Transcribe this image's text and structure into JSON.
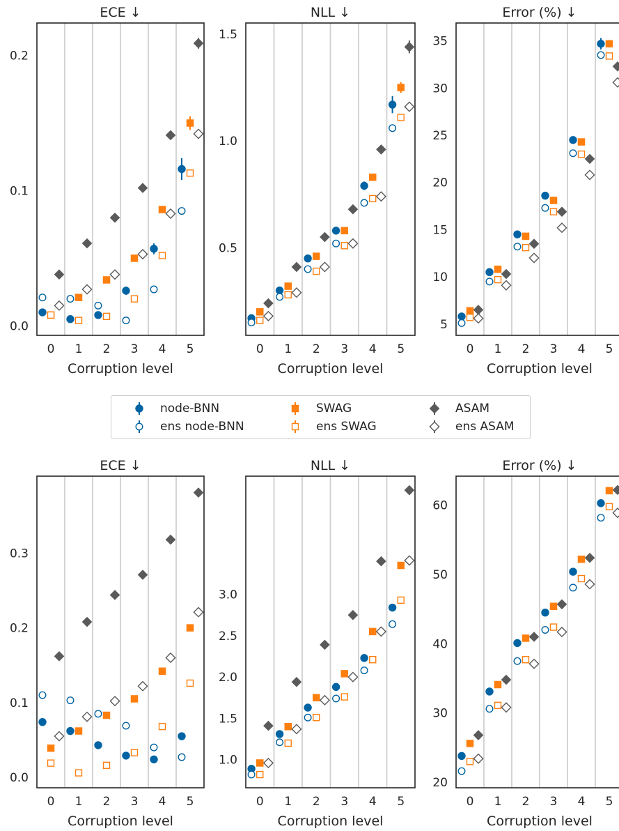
{
  "colors": {
    "node-BNN": "#0063a3",
    "SWAG": "#ff7f0e",
    "ASAM": "#5a5a5a"
  },
  "legend": [
    {
      "label": "node-BNN",
      "color": "#0063a3",
      "marker": "circle",
      "filled": true
    },
    {
      "label": "ens node-BNN",
      "color": "#0063a3",
      "marker": "circle",
      "filled": false
    },
    {
      "label": "SWAG",
      "color": "#ff7f0e",
      "marker": "square",
      "filled": true
    },
    {
      "label": "ens SWAG",
      "color": "#ff7f0e",
      "marker": "square",
      "filled": false
    },
    {
      "label": "ASAM",
      "color": "#5a5a5a",
      "marker": "diamond",
      "filled": true
    },
    {
      "label": "ens ASAM",
      "color": "#5a5a5a",
      "marker": "diamond",
      "filled": false
    }
  ],
  "chart_data": [
    {
      "type": "scatter",
      "title": "ECE  ↓",
      "xlabel": "Corruption level",
      "categories": [
        "0",
        "1",
        "2",
        "3",
        "4",
        "5"
      ],
      "ylim": [
        -0.007,
        0.224
      ],
      "yticks": [
        0.0,
        0.1,
        0.2
      ],
      "ytick_labels": [
        "0.0",
        "0.1",
        "0.2"
      ],
      "series": [
        {
          "name": "node-BNN",
          "values": [
            0.01,
            0.005,
            0.008,
            0.026,
            0.057,
            0.116
          ],
          "err": [
            0.001,
            0.001,
            0.001,
            0.003,
            0.004,
            0.008
          ]
        },
        {
          "name": "ens node-BNN",
          "values": [
            0.021,
            0.02,
            0.015,
            0.004,
            0.027,
            0.085
          ],
          "err": [
            0,
            0,
            0,
            0,
            0,
            0
          ]
        },
        {
          "name": "SWAG",
          "values": [
            0.008,
            0.021,
            0.034,
            0.05,
            0.086,
            0.15
          ],
          "err": [
            0.001,
            0.001,
            0.001,
            0.002,
            0.002,
            0.005
          ]
        },
        {
          "name": "ens SWAG",
          "values": [
            0.008,
            0.004,
            0.007,
            0.02,
            0.052,
            0.113
          ],
          "err": [
            0,
            0,
            0,
            0,
            0,
            0
          ]
        },
        {
          "name": "ASAM",
          "values": [
            0.038,
            0.061,
            0.08,
            0.102,
            0.141,
            0.209
          ],
          "err": [
            0.001,
            0.001,
            0.001,
            0.001,
            0.001,
            0.004
          ]
        },
        {
          "name": "ens ASAM",
          "values": [
            0.015,
            0.027,
            0.038,
            0.053,
            0.083,
            0.142
          ],
          "err": [
            0,
            0,
            0,
            0,
            0,
            0
          ]
        }
      ]
    },
    {
      "type": "scatter",
      "title": "NLL  ↓",
      "xlabel": "Corruption level",
      "categories": [
        "0",
        "1",
        "2",
        "3",
        "4",
        "5"
      ],
      "ylim": [
        0.09,
        1.552
      ],
      "yticks": [
        0.5,
        1.0,
        1.5
      ],
      "ytick_labels": [
        "0.5",
        "1.0",
        "1.5"
      ],
      "series": [
        {
          "name": "node-BNN",
          "values": [
            0.17,
            0.3,
            0.45,
            0.58,
            0.79,
            1.17
          ],
          "err": [
            0.005,
            0.008,
            0.01,
            0.015,
            0.02,
            0.04
          ]
        },
        {
          "name": "ens node-BNN",
          "values": [
            0.15,
            0.27,
            0.4,
            0.52,
            0.71,
            1.06
          ],
          "err": [
            0,
            0,
            0,
            0,
            0,
            0
          ]
        },
        {
          "name": "SWAG",
          "values": [
            0.2,
            0.32,
            0.46,
            0.58,
            0.83,
            1.25
          ],
          "err": [
            0.005,
            0.005,
            0.01,
            0.01,
            0.01,
            0.025
          ]
        },
        {
          "name": "ens SWAG",
          "values": [
            0.16,
            0.28,
            0.39,
            0.51,
            0.73,
            1.11
          ],
          "err": [
            0,
            0,
            0,
            0,
            0,
            0
          ]
        },
        {
          "name": "ASAM",
          "values": [
            0.24,
            0.41,
            0.55,
            0.68,
            0.96,
            1.44
          ],
          "err": [
            0.005,
            0.005,
            0.005,
            0.005,
            0.01,
            0.03
          ]
        },
        {
          "name": "ens ASAM",
          "values": [
            0.18,
            0.29,
            0.41,
            0.52,
            0.74,
            1.16
          ],
          "err": [
            0,
            0,
            0,
            0,
            0,
            0
          ]
        }
      ]
    },
    {
      "type": "scatter",
      "title": "Error (%)  ↓",
      "xlabel": "Corruption level",
      "categories": [
        "0",
        "1",
        "2",
        "3",
        "4",
        "5"
      ],
      "ylim": [
        3.8,
        36.9
      ],
      "yticks": [
        5,
        10,
        15,
        20,
        25,
        30,
        35
      ],
      "ytick_labels": [
        "5",
        "10",
        "15",
        "20",
        "25",
        "30",
        "35"
      ],
      "series": [
        {
          "name": "node-BNN",
          "values": [
            5.8,
            10.5,
            14.5,
            18.6,
            24.5,
            34.7
          ],
          "err": [
            0.2,
            0.2,
            0.2,
            0.3,
            0.3,
            0.6
          ]
        },
        {
          "name": "ens node-BNN",
          "values": [
            5.1,
            9.5,
            13.2,
            17.3,
            23.1,
            33.5
          ],
          "err": [
            0,
            0,
            0,
            0,
            0,
            0
          ]
        },
        {
          "name": "SWAG",
          "values": [
            6.4,
            10.8,
            14.3,
            18.1,
            24.3,
            34.7
          ],
          "err": [
            0.1,
            0.1,
            0.2,
            0.2,
            0.2,
            0.4
          ]
        },
        {
          "name": "ens SWAG",
          "values": [
            5.7,
            9.7,
            13.1,
            16.9,
            23.0,
            33.4
          ],
          "err": [
            0,
            0,
            0,
            0,
            0,
            0
          ]
        },
        {
          "name": "ASAM",
          "values": [
            6.5,
            10.3,
            13.5,
            16.9,
            22.5,
            32.3
          ],
          "err": [
            0.1,
            0.1,
            0.1,
            0.1,
            0.2,
            0.3
          ]
        },
        {
          "name": "ens ASAM",
          "values": [
            5.6,
            9.1,
            12.0,
            15.2,
            20.8,
            30.6
          ],
          "err": [
            0,
            0,
            0,
            0,
            0,
            0
          ]
        }
      ]
    },
    {
      "type": "scatter",
      "title": "ECE  ↓",
      "xlabel": "Corruption level",
      "categories": [
        "0",
        "1",
        "2",
        "3",
        "4",
        "5"
      ],
      "ylim": [
        -0.014,
        0.403
      ],
      "yticks": [
        0.0,
        0.1,
        0.2,
        0.3
      ],
      "ytick_labels": [
        "0.0",
        "0.1",
        "0.2",
        "0.3"
      ],
      "series": [
        {
          "name": "node-BNN",
          "values": [
            0.074,
            0.062,
            0.043,
            0.029,
            0.024,
            0.055
          ],
          "err": [
            0,
            0,
            0,
            0,
            0,
            0
          ]
        },
        {
          "name": "ens node-BNN",
          "values": [
            0.11,
            0.103,
            0.085,
            0.069,
            0.04,
            0.027
          ],
          "err": [
            0,
            0,
            0,
            0,
            0,
            0
          ]
        },
        {
          "name": "SWAG",
          "values": [
            0.039,
            0.062,
            0.083,
            0.105,
            0.142,
            0.2
          ],
          "err": [
            0,
            0,
            0,
            0,
            0,
            0
          ]
        },
        {
          "name": "ens SWAG",
          "values": [
            0.019,
            0.006,
            0.016,
            0.033,
            0.068,
            0.126
          ],
          "err": [
            0,
            0,
            0,
            0,
            0,
            0
          ]
        },
        {
          "name": "ASAM",
          "values": [
            0.162,
            0.208,
            0.244,
            0.271,
            0.318,
            0.381
          ],
          "err": [
            0,
            0,
            0,
            0,
            0,
            0
          ]
        },
        {
          "name": "ens ASAM",
          "values": [
            0.055,
            0.081,
            0.102,
            0.122,
            0.16,
            0.221
          ],
          "err": [
            0,
            0,
            0,
            0,
            0,
            0
          ]
        }
      ]
    },
    {
      "type": "scatter",
      "title": "NLL  ↓",
      "xlabel": "Corruption level",
      "categories": [
        "0",
        "1",
        "2",
        "3",
        "4",
        "5"
      ],
      "ylim": [
        0.66,
        4.43
      ],
      "yticks": [
        1.0,
        1.5,
        2.0,
        2.5,
        3.0
      ],
      "ytick_labels": [
        "1.0",
        "1.5",
        "2.0",
        "2.5",
        "3.0"
      ],
      "series": [
        {
          "name": "node-BNN",
          "values": [
            0.89,
            1.31,
            1.63,
            1.88,
            2.23,
            2.84
          ],
          "err": [
            0,
            0,
            0,
            0,
            0,
            0
          ]
        },
        {
          "name": "ens node-BNN",
          "values": [
            0.82,
            1.21,
            1.51,
            1.74,
            2.08,
            2.64
          ],
          "err": [
            0,
            0,
            0,
            0,
            0,
            0
          ]
        },
        {
          "name": "SWAG",
          "values": [
            0.96,
            1.4,
            1.75,
            2.04,
            2.55,
            3.35
          ],
          "err": [
            0,
            0,
            0,
            0,
            0,
            0
          ]
        },
        {
          "name": "ens SWAG",
          "values": [
            0.82,
            1.2,
            1.51,
            1.76,
            2.21,
            2.93
          ],
          "err": [
            0,
            0,
            0,
            0,
            0,
            0
          ]
        },
        {
          "name": "ASAM",
          "values": [
            1.41,
            1.94,
            2.39,
            2.75,
            3.4,
            4.26
          ],
          "err": [
            0,
            0,
            0,
            0,
            0,
            0
          ]
        },
        {
          "name": "ens ASAM",
          "values": [
            0.96,
            1.37,
            1.72,
            2.0,
            2.55,
            3.41
          ],
          "err": [
            0,
            0,
            0,
            0,
            0,
            0
          ]
        }
      ]
    },
    {
      "type": "scatter",
      "title": "Error (%)  ↓",
      "xlabel": "Corruption level",
      "categories": [
        "0",
        "1",
        "2",
        "3",
        "4",
        "5"
      ],
      "ylim": [
        19.2,
        64.2
      ],
      "yticks": [
        20,
        30,
        40,
        50,
        60
      ],
      "ytick_labels": [
        "20",
        "30",
        "40",
        "50",
        "60"
      ],
      "series": [
        {
          "name": "node-BNN",
          "values": [
            23.8,
            33.1,
            40.1,
            44.5,
            50.4,
            60.3
          ],
          "err": [
            0,
            0,
            0,
            0,
            0,
            0
          ]
        },
        {
          "name": "ens node-BNN",
          "values": [
            21.6,
            30.6,
            37.5,
            42.0,
            48.1,
            58.2
          ],
          "err": [
            0,
            0,
            0,
            0,
            0,
            0
          ]
        },
        {
          "name": "SWAG",
          "values": [
            25.6,
            34.1,
            40.8,
            45.4,
            52.2,
            62.1
          ],
          "err": [
            0,
            0,
            0,
            0,
            0,
            0
          ]
        },
        {
          "name": "ens SWAG",
          "values": [
            23.0,
            31.1,
            37.7,
            42.4,
            49.4,
            59.8
          ],
          "err": [
            0,
            0,
            0,
            0,
            0,
            0
          ]
        },
        {
          "name": "ASAM",
          "values": [
            26.8,
            34.8,
            41.0,
            45.7,
            52.4,
            62.2
          ],
          "err": [
            0,
            0,
            0,
            0,
            0,
            0
          ]
        },
        {
          "name": "ens ASAM",
          "values": [
            23.4,
            30.8,
            37.1,
            41.7,
            48.6,
            58.9
          ],
          "err": [
            0,
            0,
            0,
            0,
            0,
            0
          ]
        }
      ]
    }
  ]
}
